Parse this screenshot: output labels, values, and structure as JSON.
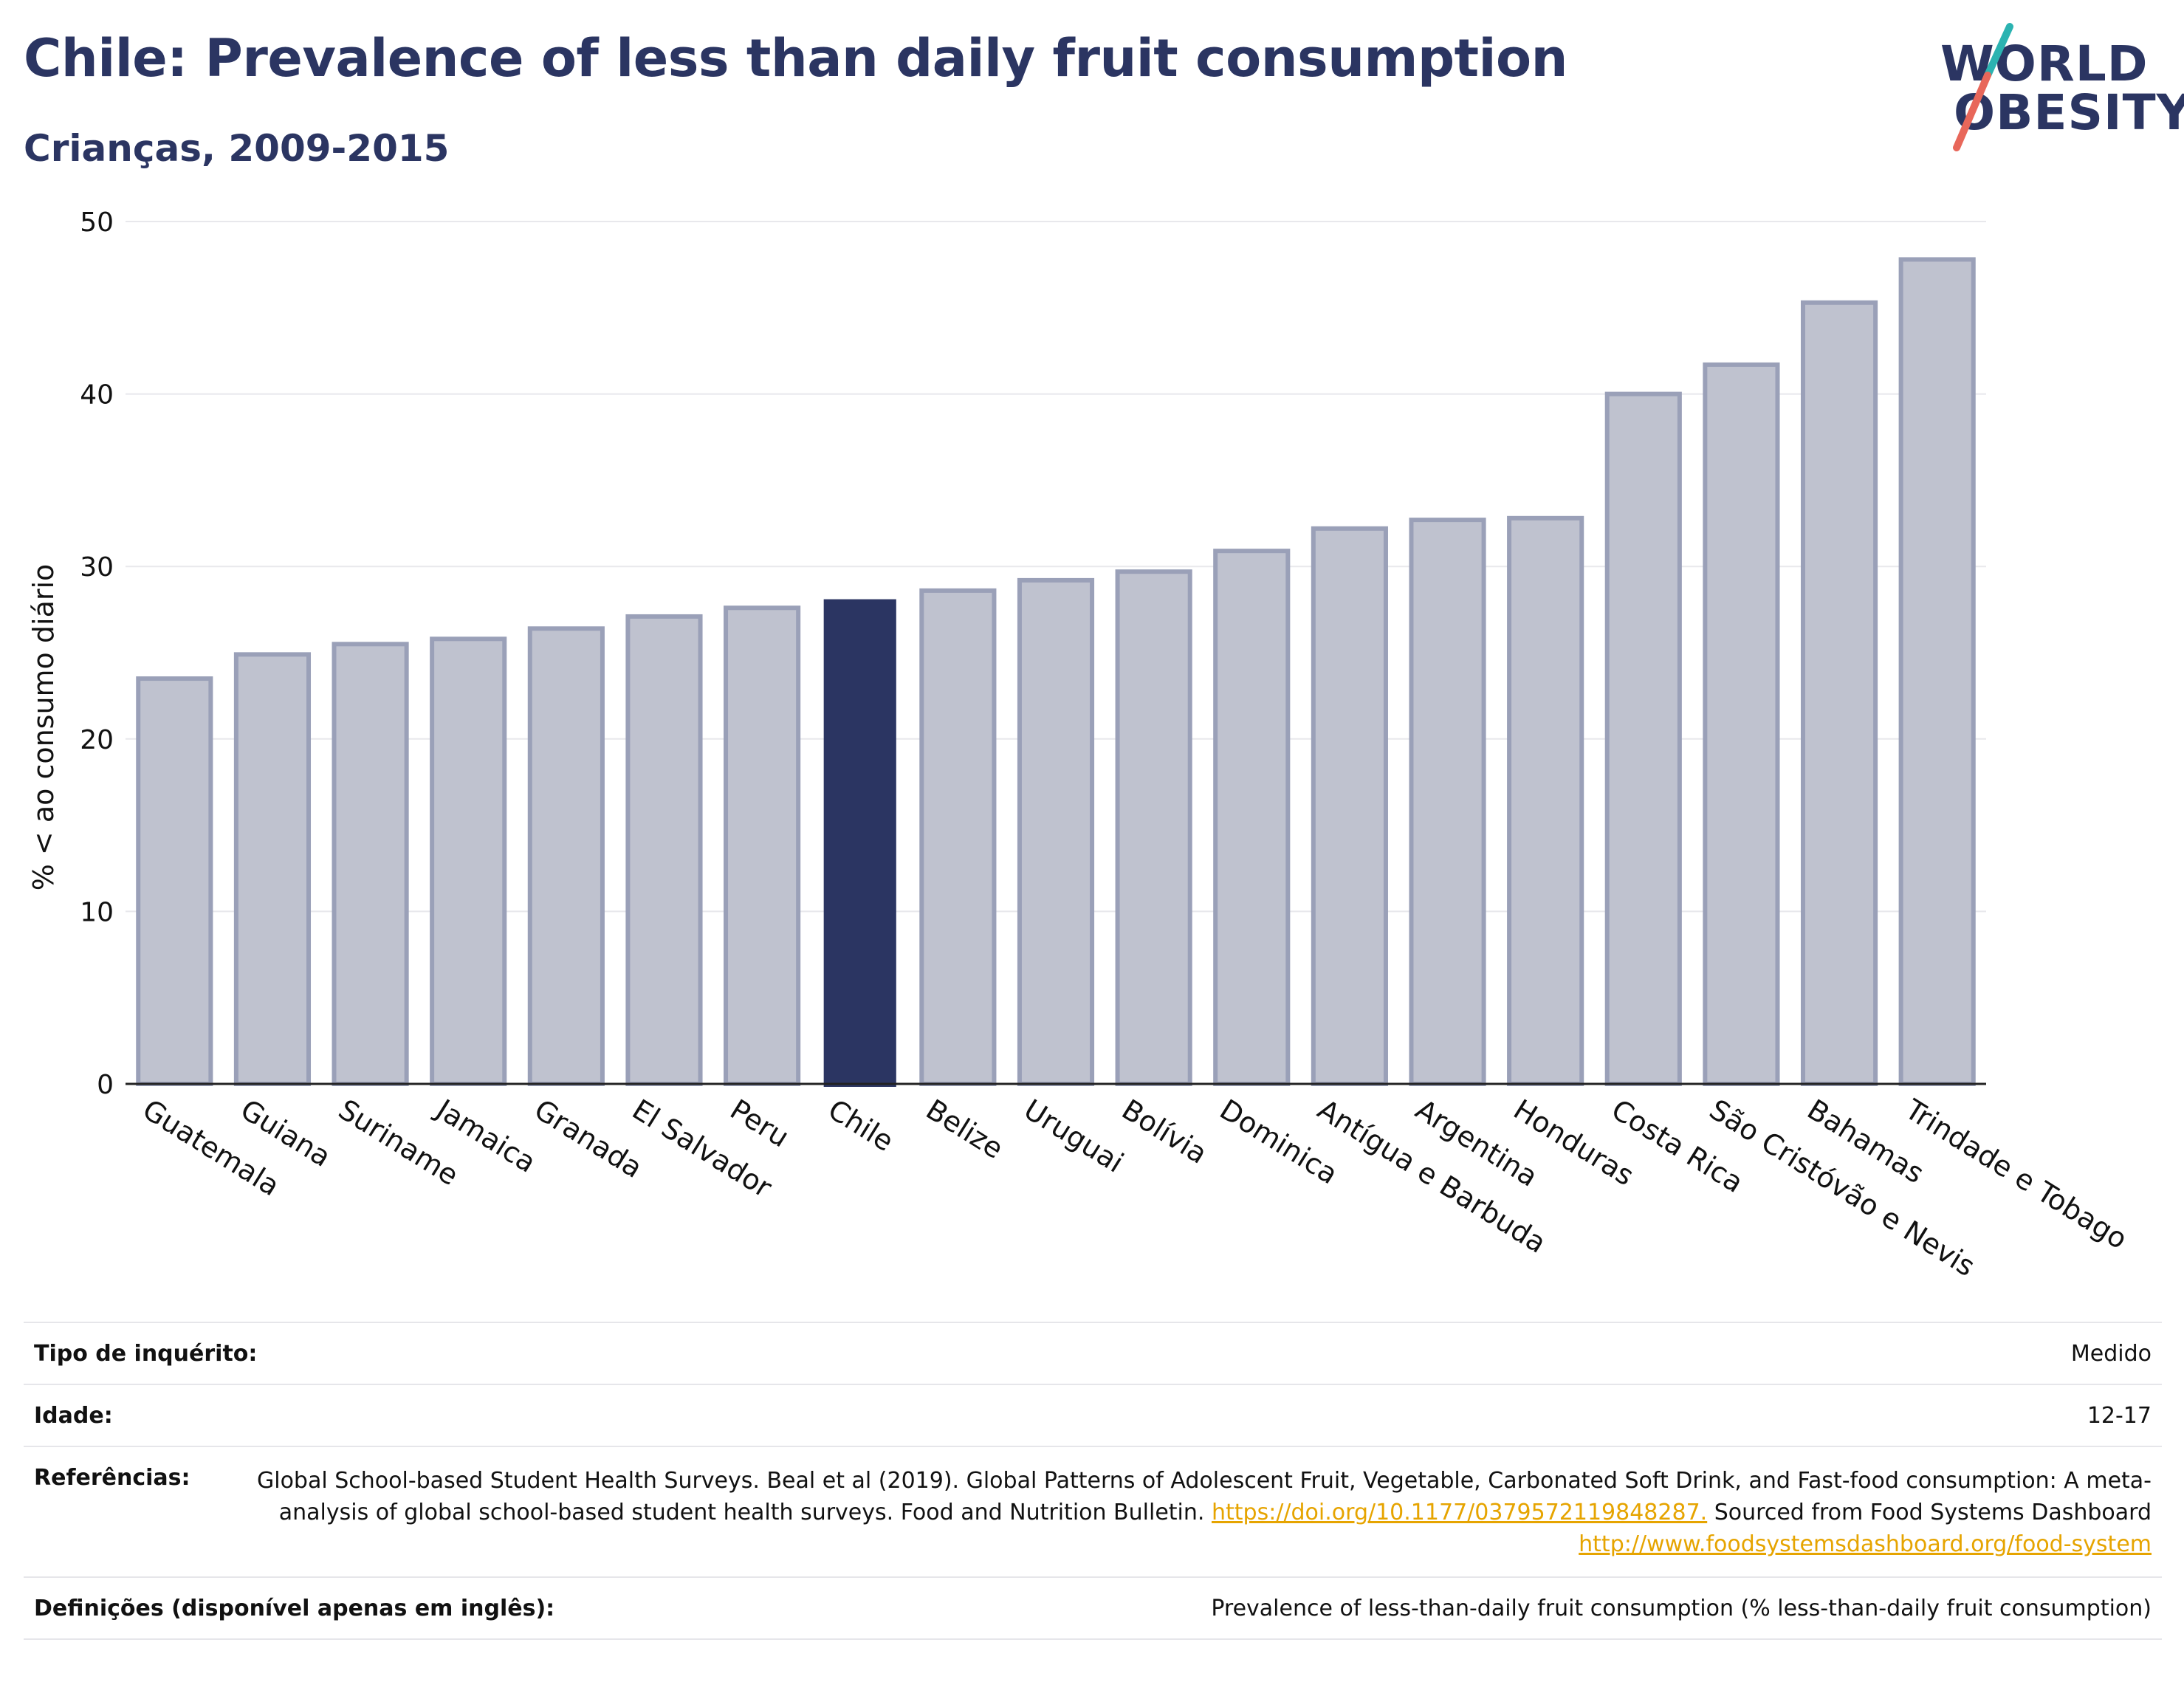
{
  "header": {
    "title": "Chile: Prevalence of less than daily fruit consumption",
    "subtitle": "Crianças, 2009-2015"
  },
  "logo": {
    "line1": "WORLD",
    "line2": "OBESITY"
  },
  "colors": {
    "bar_default_fill": "#bfc2cf",
    "bar_default_stroke": "#9aa0b8",
    "bar_highlight": "#2b3562",
    "title": "#2b3562",
    "logo_slash_teal": "#2bb3b1",
    "logo_slash_coral": "#e8675a",
    "link": "#e6a400"
  },
  "chart_data": {
    "type": "bar",
    "categories": [
      "Guatemala",
      "Guiana",
      "Suriname",
      "Jamaica",
      "Granada",
      "El Salvador",
      "Peru",
      "Chile",
      "Belize",
      "Uruguai",
      "Bolívia",
      "Dominica",
      "Antígua e Barbuda",
      "Argentina",
      "Honduras",
      "Costa Rica",
      "São Cristóvão e Nevis",
      "Bahamas",
      "Trindade e Tobago"
    ],
    "values": [
      23.5,
      24.9,
      25.5,
      25.8,
      26.4,
      27.1,
      27.6,
      28.1,
      28.6,
      29.2,
      29.7,
      30.9,
      32.2,
      32.7,
      32.8,
      40.0,
      41.7,
      45.3,
      47.8
    ],
    "highlight": "Chile",
    "ylabel": "% < ao consumo diário",
    "xlabel": "",
    "ylim": [
      0,
      50
    ],
    "yticks": [
      0,
      10,
      20,
      30,
      40,
      50
    ],
    "grid": true
  },
  "info": {
    "survey_type_label": "Tipo de inquérito:",
    "survey_type_value": "Medido",
    "age_label": "Idade:",
    "age_value": "12-17",
    "references_label": "Referências:",
    "references_text_1": "Global School-based Student Health Surveys. Beal et al (2019). Global Patterns of Adolescent Fruit, Vegetable, Carbonated Soft Drink, and Fast-food consumption: A meta-analysis of global school-based student health surveys. Food and Nutrition Bulletin.",
    "references_link_1": "https://doi.org/10.1177/0379572119848287.",
    "references_text_2": "Sourced from Food Systems Dashboard",
    "references_link_2": "http://www.foodsystemsdashboard.org/food-system",
    "definitions_label": "Definições (disponível apenas em inglês):",
    "definitions_value": "Prevalence of less-than-daily fruit consumption (% less-than-daily fruit consumption)"
  }
}
